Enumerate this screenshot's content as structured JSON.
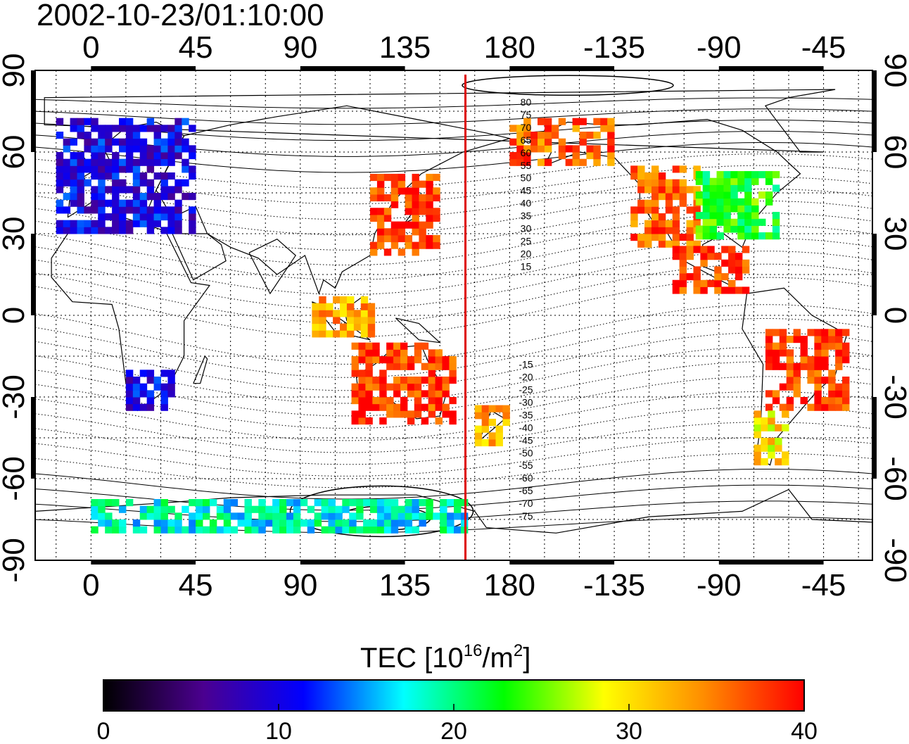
{
  "title": "2002-10-23/01:10:00",
  "map": {
    "lon_ticks": [
      "0",
      "45",
      "90",
      "135",
      "180",
      "-135",
      "-90",
      "-45"
    ],
    "lat_ticks": [
      "90",
      "60",
      "30",
      "0",
      "-30",
      "-60",
      "-90"
    ],
    "lon_range": [
      -24,
      336
    ],
    "lat_range": [
      -90,
      90
    ],
    "grid": "dotted",
    "meridian_marker": {
      "lon": 161,
      "color": "#dd0000"
    },
    "magnetic_latitude_contours": {
      "north": [
        "80",
        "75",
        "70",
        "65",
        "60",
        "55",
        "50",
        "45",
        "40",
        "35",
        "30",
        "25",
        "20",
        "15"
      ],
      "south": [
        "-15",
        "-20",
        "-25",
        "-30",
        "-35",
        "-40",
        "-45",
        "-50",
        "-55",
        "-60",
        "-65",
        "-70",
        "-75"
      ]
    },
    "tec_regions": [
      {
        "name": "europe",
        "lon": [
          -15,
          45
        ],
        "lat": [
          30,
          72
        ],
        "tec": 10
      },
      {
        "name": "east-asia",
        "lon": [
          120,
          150
        ],
        "lat": [
          22,
          50
        ],
        "tec": 38
      },
      {
        "name": "alaska",
        "lon": [
          -180,
          -135
        ],
        "lat": [
          55,
          72
        ],
        "tec": 36
      },
      {
        "name": "north-america-west",
        "lon": [
          -128,
          -100
        ],
        "lat": [
          25,
          55
        ],
        "tec": 36
      },
      {
        "name": "north-america-east",
        "lon": [
          -100,
          -65
        ],
        "lat": [
          28,
          52
        ],
        "tec": 23
      },
      {
        "name": "central-america",
        "lon": [
          -110,
          -78
        ],
        "lat": [
          8,
          25
        ],
        "tec": 38
      },
      {
        "name": "australia",
        "lon": [
          112,
          155
        ],
        "lat": [
          -40,
          -12
        ],
        "tec": 38
      },
      {
        "name": "new-zealand",
        "lon": [
          165,
          180
        ],
        "lat": [
          -48,
          -35
        ],
        "tec": 33
      },
      {
        "name": "south-america",
        "lon": [
          -70,
          -35
        ],
        "lat": [
          -35,
          -5
        ],
        "tec": 38
      },
      {
        "name": "patagonia",
        "lon": [
          -75,
          -60
        ],
        "lat": [
          -55,
          -35
        ],
        "tec": 30
      },
      {
        "name": "southern-africa",
        "lon": [
          15,
          35
        ],
        "lat": [
          -35,
          -20
        ],
        "tec": 10
      },
      {
        "name": "antarctica",
        "lon": [
          0,
          160
        ],
        "lat": [
          -80,
          -68
        ],
        "tec": 18
      },
      {
        "name": "indonesia",
        "lon": [
          95,
          120
        ],
        "lat": [
          -8,
          5
        ],
        "tec": 33
      }
    ]
  },
  "colorbar": {
    "label": "TEC  [10",
    "label_sup": "16",
    "label_mid": "/m",
    "label_sup2": "2",
    "label_end": "]",
    "min": 0,
    "max": 40,
    "ticks": [
      "0",
      "10",
      "20",
      "30",
      "40"
    ],
    "colors": [
      "#000000",
      "#4b0090",
      "#0000ff",
      "#00ffff",
      "#00ff00",
      "#ffff00",
      "#ff8c00",
      "#ff0000"
    ]
  }
}
